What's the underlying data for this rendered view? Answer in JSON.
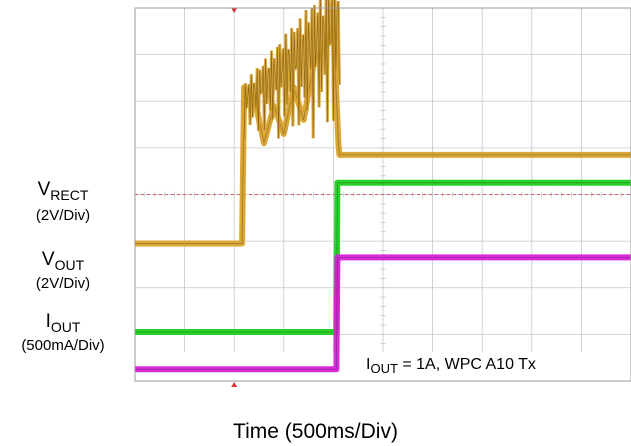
{
  "chart_data": {
    "type": "line",
    "title": "",
    "xlabel": "Time (500ms/Div)",
    "xlim": [
      0,
      5000
    ],
    "x_units": "ms",
    "x_per_div": 500,
    "divisions_x": 10,
    "divisions_y": 8,
    "grid": true,
    "trigger_level_marker": "dashed red horizontal line",
    "trigger_position_marker": "red tick at top and bottom",
    "series": [
      {
        "label_main": "V",
        "label_sub": "RECT",
        "scale": "(2V/Div)",
        "color": "#d9a22b",
        "x": [
          0,
          1080,
          1100,
          1200,
          1300,
          1400,
          1500,
          1600,
          1700,
          1800,
          1900,
          2000,
          2050,
          2060,
          5000
        ],
        "y_div": [
          -1.05,
          -1.05,
          2.3,
          2.1,
          1.1,
          1.9,
          1.3,
          2.3,
          1.6,
          2.8,
          3.1,
          3.6,
          1.1,
          0.85,
          0.85
        ]
      },
      {
        "label_main": "V",
        "label_sub": "OUT",
        "scale": "(2V/Div)",
        "color": "#1cd11c",
        "x": [
          0,
          2030,
          2040,
          5000
        ],
        "y_div": [
          -2.95,
          -2.95,
          0.25,
          0.25
        ]
      },
      {
        "label_main": "I",
        "label_sub": "OUT",
        "scale": "(500mA/Div)",
        "color": "#d81fd8",
        "x": [
          0,
          2030,
          2040,
          5000
        ],
        "y_div": [
          -3.75,
          -3.75,
          -1.35,
          -1.35
        ]
      }
    ],
    "annotation": {
      "main": "I",
      "sub": "OUT",
      "rest": " = 1A, WPC A10 Tx"
    }
  }
}
